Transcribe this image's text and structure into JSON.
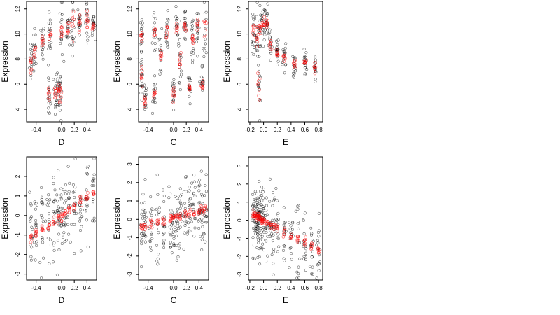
{
  "chart_data": [
    {
      "type": "scatter",
      "xlabel": "D",
      "ylabel": "Expression",
      "xlim": [
        -0.55,
        0.55
      ],
      "ylim": [
        3,
        12.6
      ],
      "xticks": [
        -0.4,
        0.0,
        0.2,
        0.4
      ],
      "xtick_labels": [
        "-0.4",
        "0.0",
        "0.2",
        "0.4"
      ],
      "yticks": [
        4,
        6,
        8,
        10,
        12
      ],
      "ytick_labels": [
        "4",
        "6",
        "8",
        "10",
        "12"
      ],
      "groups": [
        [
          -0.48,
          7.8,
          1.0
        ],
        [
          -0.42,
          8.4,
          1.0
        ],
        [
          -0.3,
          9.4,
          0.7
        ],
        [
          -0.2,
          5.0,
          1.0
        ],
        [
          -0.18,
          10.0,
          0.8
        ],
        [
          -0.1,
          5.3,
          1.0
        ],
        [
          -0.05,
          5.5,
          0.9
        ],
        [
          -0.02,
          5.5,
          1.2
        ],
        [
          0.0,
          10.2,
          1.2
        ],
        [
          0.1,
          10.4,
          0.8
        ],
        [
          0.18,
          10.8,
          1.2
        ],
        [
          0.28,
          10.9,
          0.8
        ],
        [
          0.4,
          11.1,
          0.9
        ],
        [
          0.5,
          10.6,
          0.4
        ]
      ],
      "grid": false,
      "legend": "none",
      "colors": {
        "observed": "#000000",
        "fitted": "#ff0000"
      }
    },
    {
      "type": "scatter",
      "xlabel": "C",
      "ylabel": "Expression",
      "xlim": [
        -0.55,
        0.55
      ],
      "ylim": [
        3,
        12.6
      ],
      "xticks": [
        -0.4,
        0.0,
        0.2,
        0.4
      ],
      "xtick_labels": [
        "-0.4",
        "0.0",
        "0.2",
        "0.4"
      ],
      "yticks": [
        4,
        6,
        8,
        10,
        12
      ],
      "ytick_labels": [
        "4",
        "6",
        "8",
        "10",
        "12"
      ],
      "groups": [
        [
          -0.5,
          9.9,
          1.2
        ],
        [
          -0.5,
          6.5,
          1.2
        ],
        [
          -0.45,
          4.6,
          0.7
        ],
        [
          -0.3,
          10.0,
          0.8
        ],
        [
          -0.3,
          5.2,
          0.6
        ],
        [
          -0.2,
          8.5,
          1.0
        ],
        [
          -0.1,
          10.2,
          0.7
        ],
        [
          0.0,
          5.4,
          0.6
        ],
        [
          0.05,
          10.4,
          0.8
        ],
        [
          0.1,
          7.8,
          1.0
        ],
        [
          0.18,
          10.5,
          0.8
        ],
        [
          0.25,
          5.7,
          0.7
        ],
        [
          0.3,
          9.5,
          1.2
        ],
        [
          0.38,
          10.8,
          0.9
        ],
        [
          0.45,
          6.0,
          0.8
        ],
        [
          0.5,
          10.5,
          1.4
        ]
      ],
      "grid": false,
      "legend": "none",
      "colors": {
        "observed": "#000000",
        "fitted": "#ff0000"
      }
    },
    {
      "type": "scatter",
      "xlabel": "E",
      "ylabel": "Expression",
      "xlim": [
        -0.22,
        0.86
      ],
      "ylim": [
        3,
        12.6
      ],
      "xticks": [
        -0.2,
        0.0,
        0.2,
        0.4,
        0.6,
        0.8
      ],
      "xtick_labels": [
        "-0.2",
        "0.0",
        "0.2",
        "0.4",
        "0.6",
        "0.8"
      ],
      "yticks": [
        4,
        6,
        8,
        10,
        12
      ],
      "ytick_labels": [
        "4",
        "6",
        "8",
        "10",
        "12"
      ],
      "groups": [
        [
          -0.15,
          10.3,
          1.0
        ],
        [
          -0.1,
          9.8,
          1.2
        ],
        [
          -0.07,
          5.8,
          1.6
        ],
        [
          -0.05,
          10.5,
          1.0
        ],
        [
          0.0,
          10.8,
          0.8
        ],
        [
          0.05,
          10.9,
          0.7
        ],
        [
          0.1,
          9.0,
          0.7
        ],
        [
          0.2,
          8.5,
          0.6
        ],
        [
          0.3,
          8.2,
          0.5
        ],
        [
          0.45,
          7.6,
          0.5
        ],
        [
          0.6,
          7.7,
          0.5
        ],
        [
          0.75,
          7.4,
          0.5
        ]
      ],
      "grid": false,
      "legend": "none",
      "colors": {
        "observed": "#000000",
        "fitted": "#ff0000"
      }
    },
    {
      "type": "scatter",
      "xlabel": "D",
      "ylabel": "Expression",
      "xlim": [
        -0.55,
        0.55
      ],
      "ylim": [
        -3.3,
        3.0
      ],
      "xticks": [
        -0.4,
        0.0,
        0.2,
        0.4
      ],
      "xtick_labels": [
        "-0.4",
        "0.0",
        "0.2",
        "0.4"
      ],
      "yticks": [
        -3,
        -2,
        -1,
        0,
        1,
        2
      ],
      "ytick_labels": [
        "-3",
        "-2",
        "-1",
        "0",
        "1",
        "2"
      ],
      "fit_line": {
        "intercept": 0.0,
        "slope": 2.2
      },
      "x_groups": [
        -0.48,
        -0.4,
        -0.3,
        -0.2,
        -0.12,
        -0.05,
        0.0,
        0.05,
        0.12,
        0.2,
        0.3,
        0.4,
        0.5
      ],
      "spread": 1.0,
      "grid": false,
      "legend": "none",
      "colors": {
        "observed": "#000000",
        "fitted": "#ff0000"
      }
    },
    {
      "type": "scatter",
      "xlabel": "C",
      "ylabel": "Expression",
      "xlim": [
        -0.55,
        0.55
      ],
      "ylim": [
        -3.3,
        3.4
      ],
      "xticks": [
        -0.4,
        0.0,
        0.2,
        0.4
      ],
      "xtick_labels": [
        "-0.4",
        "0.0",
        "0.2",
        "0.4"
      ],
      "yticks": [
        -3,
        -2,
        -1,
        0,
        1,
        2,
        3
      ],
      "ytick_labels": [
        "-3",
        "-2",
        "-1",
        "0",
        "1",
        "2",
        "3"
      ],
      "fit_line": {
        "intercept": 0.05,
        "slope": 1.0
      },
      "x_groups": [
        -0.5,
        -0.45,
        -0.35,
        -0.25,
        -0.15,
        -0.05,
        0.0,
        0.05,
        0.1,
        0.18,
        0.25,
        0.32,
        0.4,
        0.45,
        0.5
      ],
      "spread": 1.0,
      "grid": false,
      "legend": "none",
      "colors": {
        "observed": "#000000",
        "fitted": "#ff0000"
      }
    },
    {
      "type": "scatter",
      "xlabel": "E",
      "ylabel": "Expression",
      "xlim": [
        -0.22,
        0.86
      ],
      "ylim": [
        -3.3,
        3.5
      ],
      "xticks": [
        -0.2,
        0.0,
        0.2,
        0.4,
        0.6,
        0.8
      ],
      "xtick_labels": [
        "-0.2",
        "0.0",
        "0.2",
        "0.4",
        "0.6",
        "0.8"
      ],
      "yticks": [
        -3,
        -2,
        -1,
        0,
        1,
        2,
        3
      ],
      "ytick_labels": [
        "-3",
        "-2",
        "-1",
        "0",
        "1",
        "2",
        "3"
      ],
      "fit_line": {
        "intercept": 0.0,
        "slope": -2.1
      },
      "x_groups": [
        -0.15,
        -0.12,
        -0.1,
        -0.08,
        -0.06,
        -0.04,
        -0.02,
        0.0,
        0.05,
        0.1,
        0.15,
        0.2,
        0.3,
        0.4,
        0.5,
        0.6,
        0.7,
        0.8
      ],
      "spread": 1.0,
      "grid": false,
      "legend": "none",
      "colors": {
        "observed": "#000000",
        "fitted": "#ff0000"
      }
    }
  ]
}
